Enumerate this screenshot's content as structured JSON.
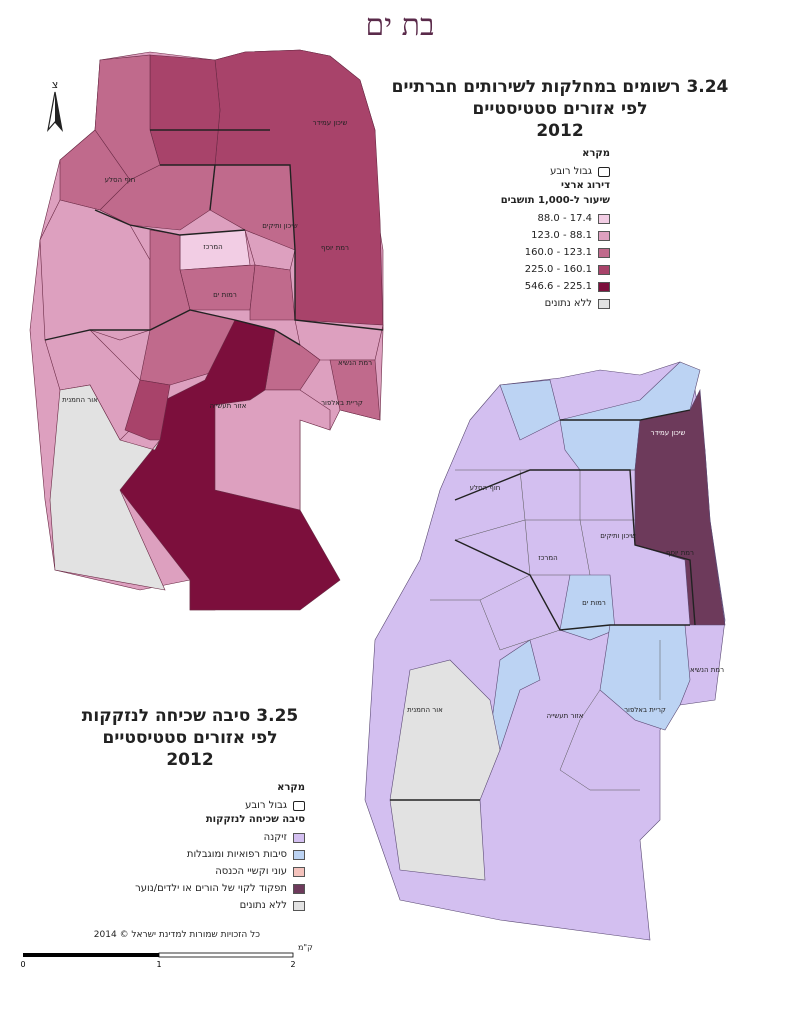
{
  "city_title": "בת ים",
  "map1": {
    "title_lines": [
      "3.24  רשומים במחלקות לשירותים חברתיים",
      "לפי אזורים סטטיסטיים",
      "2012"
    ],
    "legend_heading": "מקרא",
    "boundary_label": "גבול רובע",
    "classification_heading": "דירוג ארצי",
    "rate_heading": "שיעור ל-1,000 תושבים",
    "classes": [
      {
        "label": "17.4 - 88.0",
        "color": "#f2cde4"
      },
      {
        "label": "88.1 - 123.0",
        "color": "#dda0bf"
      },
      {
        "label": "123.1 - 160.0",
        "color": "#c06a8c"
      },
      {
        "label": "160.1 - 225.0",
        "color": "#a8436a"
      },
      {
        "label": "225.1 - 546.6",
        "color": "#7c0f3c"
      },
      {
        "label": "ללא נתונים",
        "color": "#e2e2e2"
      }
    ],
    "places": [
      "שיכון עמידר",
      "חוף הסלע",
      "שיכון ותיקים",
      "המרכז",
      "רמת יוסף",
      "רמות ים",
      "רמת הנשיא",
      "קריית באלפור",
      "אור החמנית",
      "אזור תעשייה"
    ]
  },
  "map2": {
    "title_lines": [
      "3.25  סיבה שכיחה לנזקקות",
      "לפי אזורים סטטיסטיים",
      "2012"
    ],
    "legend_heading": "מקרא",
    "boundary_label": "גבול רובע",
    "reason_heading": "סיבה שכיחה לנזקקות",
    "classes": [
      {
        "label": "זיקנה",
        "color": "#d3bff0"
      },
      {
        "label": "סיבות רפואיות ומוגבלות",
        "color": "#bcd3f3"
      },
      {
        "label": "עוני וקשיי הכנסה",
        "color": "#f4c2bc"
      },
      {
        "label": "תפקוד לקוי של הורים או ילדים/נוער",
        "color": "#6d3a5b"
      },
      {
        "label": "ללא נתונים",
        "color": "#e2e2e2"
      }
    ],
    "places": [
      "שיכון עמידר",
      "חוף הסלע",
      "שיכון ותיקים",
      "המרכז",
      "רמת יוסף",
      "רמות ים",
      "רמת הנשיא",
      "קריית באלפור",
      "אור החמנית",
      "אזור תעשייה"
    ]
  },
  "north_label": "צ",
  "scale": {
    "unit": "ק\"מ",
    "ticks": [
      "0",
      "1",
      "2"
    ]
  },
  "copyright": "כל הזכויות שמורות למדינת ישראל © 2014"
}
